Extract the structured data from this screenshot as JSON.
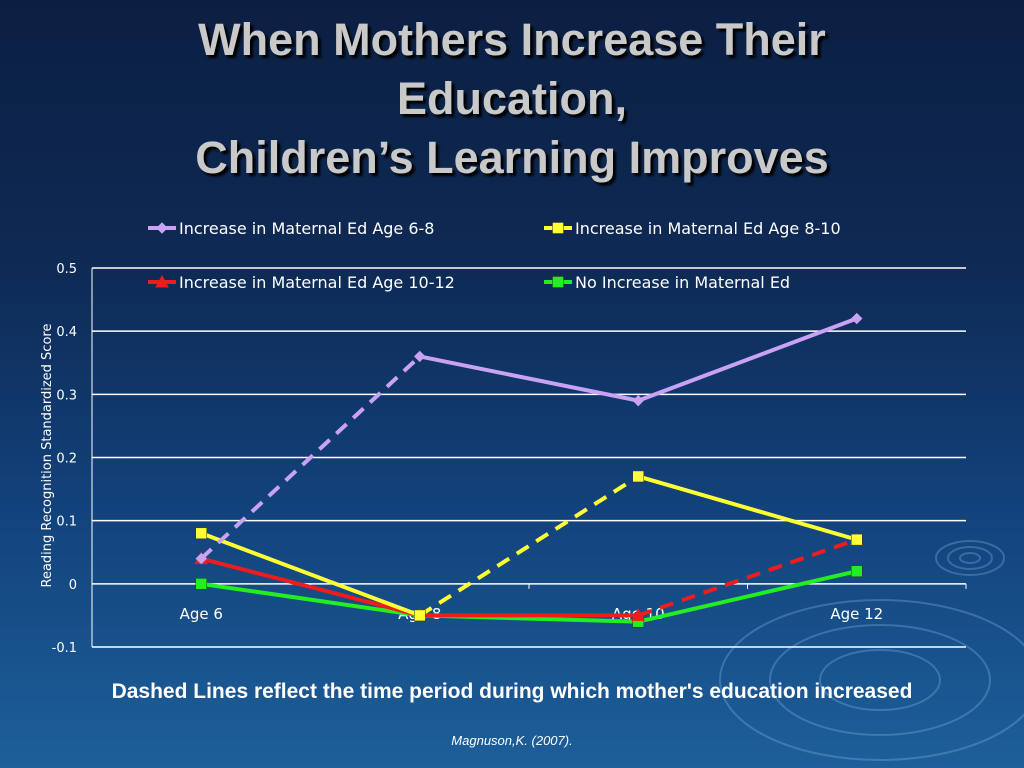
{
  "slide": {
    "title_lines": [
      "When Mothers Increase Their",
      "Education,",
      "Children’s Learning Improves"
    ],
    "caption": "Dashed Lines reflect the time period during which mother's education increased",
    "citation": "Magnuson,K. (2007)."
  },
  "chart_data": {
    "type": "line",
    "title": "",
    "xlabel": "",
    "ylabel": "Reading Recognition Standardized Score",
    "categories": [
      "Age 6",
      "Age 8",
      "Age 10",
      "Age 12"
    ],
    "ylim": [
      -0.1,
      0.5
    ],
    "yticks": [
      "-0.1",
      "0",
      "0.1",
      "0.2",
      "0.3",
      "0.4",
      "0.5"
    ],
    "ytick_values": [
      -0.1,
      0,
      0.1,
      0.2,
      0.3,
      0.4,
      0.5
    ],
    "grid": true,
    "legend_position": "top",
    "series": [
      {
        "name": "Increase in Maternal Ed Age 6-8",
        "values": [
          0.04,
          0.36,
          0.29,
          0.42
        ],
        "color": "#c9a2f5",
        "marker": "diamond",
        "dashed_segments": [
          0
        ]
      },
      {
        "name": "Increase in Maternal Ed Age 8-10",
        "values": [
          0.08,
          -0.05,
          0.17,
          0.07
        ],
        "color": "#ffff33",
        "marker": "square",
        "dashed_segments": [
          1
        ]
      },
      {
        "name": "Increase in Maternal Ed Age 10-12",
        "values": [
          0.04,
          -0.05,
          -0.05,
          0.07
        ],
        "color": "#ee1c1c",
        "marker": "triangle",
        "dashed_segments": [
          2
        ]
      },
      {
        "name": "No Increase in Maternal Ed",
        "values": [
          0.0,
          -0.05,
          -0.06,
          0.02
        ],
        "color": "#22ee22",
        "marker": "square",
        "dashed_segments": []
      }
    ]
  }
}
